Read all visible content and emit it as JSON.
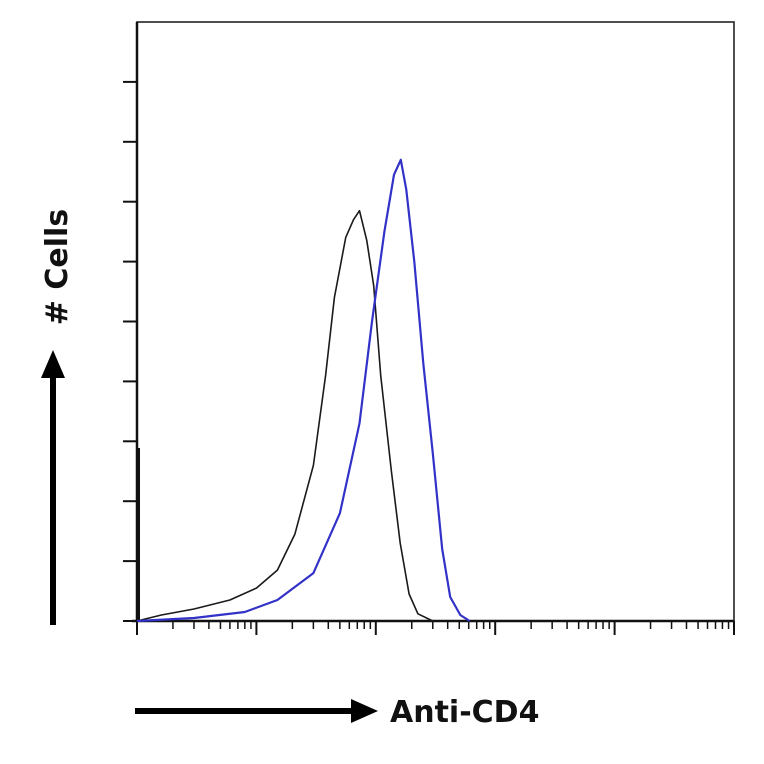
{
  "chart_data": {
    "type": "line",
    "title": "",
    "xlabel": "Anti-CD4",
    "ylabel": "# Cells",
    "x_scale": "log",
    "xlim": [
      0.1,
      10000
    ],
    "ylim": [
      0,
      10
    ],
    "y_major_ticks": [
      0,
      1,
      2,
      3,
      4,
      5,
      6,
      7,
      8,
      9
    ],
    "x_decades": [
      0.1,
      1,
      10,
      100,
      1000,
      10000
    ],
    "grid": false,
    "legend": "none",
    "series": [
      {
        "color": "#1a1a1a",
        "points": [
          [
            0.1,
            0.0
          ],
          [
            0.16,
            0.1
          ],
          [
            0.3,
            0.2
          ],
          [
            0.6,
            0.35
          ],
          [
            1.0,
            0.55
          ],
          [
            1.5,
            0.85
          ],
          [
            2.1,
            1.45
          ],
          [
            3.0,
            2.6
          ],
          [
            3.8,
            4.1
          ],
          [
            4.5,
            5.4
          ],
          [
            5.6,
            6.4
          ],
          [
            6.5,
            6.7
          ],
          [
            7.3,
            6.85
          ],
          [
            8.4,
            6.35
          ],
          [
            9.6,
            5.6
          ],
          [
            11.0,
            4.1
          ],
          [
            13.5,
            2.5
          ],
          [
            16.0,
            1.3
          ],
          [
            19.0,
            0.45
          ],
          [
            22.5,
            0.12
          ],
          [
            30.0,
            0.0
          ]
        ]
      },
      {
        "color": "#3232c8",
        "points": [
          [
            0.1,
            0.0
          ],
          [
            0.3,
            0.05
          ],
          [
            0.8,
            0.15
          ],
          [
            1.5,
            0.35
          ],
          [
            3.0,
            0.8
          ],
          [
            5.0,
            1.8
          ],
          [
            7.3,
            3.3
          ],
          [
            9.3,
            5.0
          ],
          [
            11.8,
            6.5
          ],
          [
            14.2,
            7.45
          ],
          [
            16.2,
            7.7
          ],
          [
            18.0,
            7.2
          ],
          [
            21.0,
            6.0
          ],
          [
            25.0,
            4.3
          ],
          [
            30.0,
            2.8
          ],
          [
            36.0,
            1.2
          ],
          [
            42.0,
            0.4
          ],
          [
            51.0,
            0.1
          ],
          [
            61.0,
            0.0
          ]
        ]
      }
    ]
  }
}
